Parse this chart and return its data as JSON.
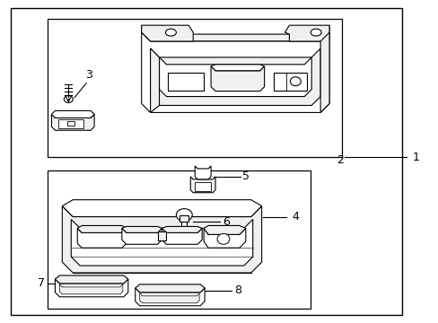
{
  "bg_color": "#ffffff",
  "lc": "#000000",
  "lw": 0.8,
  "figsize": [
    4.89,
    3.6
  ],
  "dpi": 100
}
